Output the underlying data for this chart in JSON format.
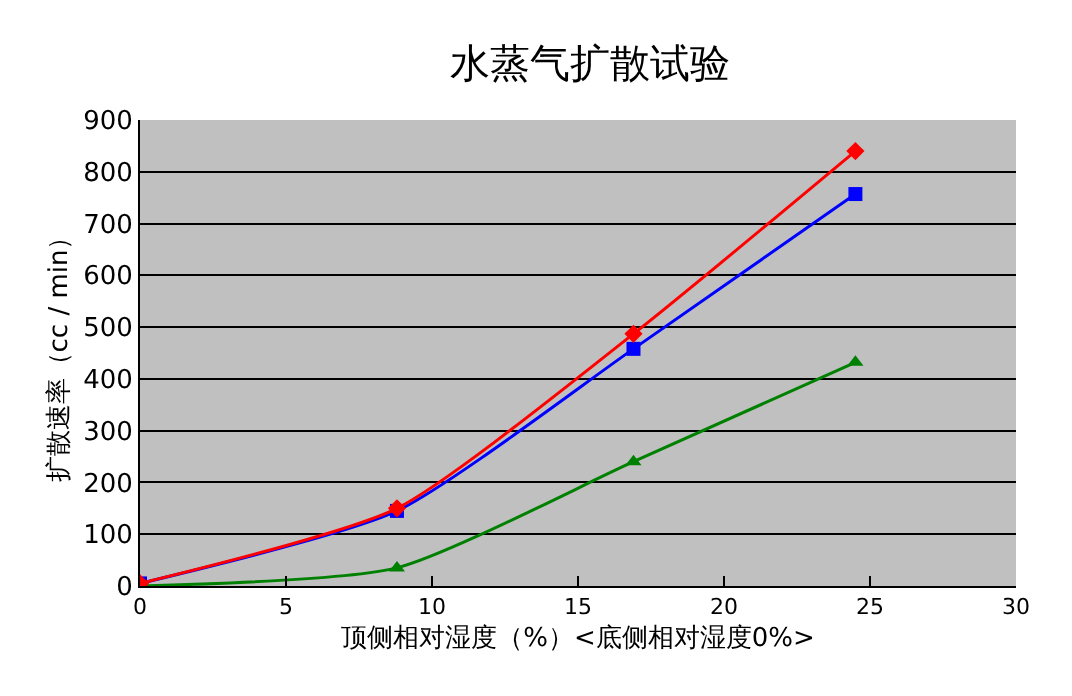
{
  "chart_data": {
    "type": "line",
    "title": "水蒸气扩散试验",
    "xlabel": "顶侧相对湿度（%）<底侧相对湿度0%>",
    "ylabel": "扩散速率（cc / min）",
    "x": [
      0,
      8.8,
      16.9,
      24.5
    ],
    "series": [
      {
        "color": "#ff0000",
        "marker": "diamond",
        "values": [
          5,
          150,
          487,
          840
        ]
      },
      {
        "color": "#0000ff",
        "marker": "square",
        "values": [
          5,
          145,
          458,
          757
        ]
      },
      {
        "color": "#008000",
        "marker": "triangle",
        "values": [
          0,
          35,
          240,
          432
        ]
      }
    ],
    "xlim": [
      0,
      30
    ],
    "xticks": [
      0,
      5,
      10,
      15,
      20,
      25,
      30
    ],
    "ylim": [
      0,
      900
    ],
    "yticks": [
      0,
      100,
      200,
      300,
      400,
      500,
      600,
      700,
      800,
      900
    ],
    "grid": "y"
  }
}
